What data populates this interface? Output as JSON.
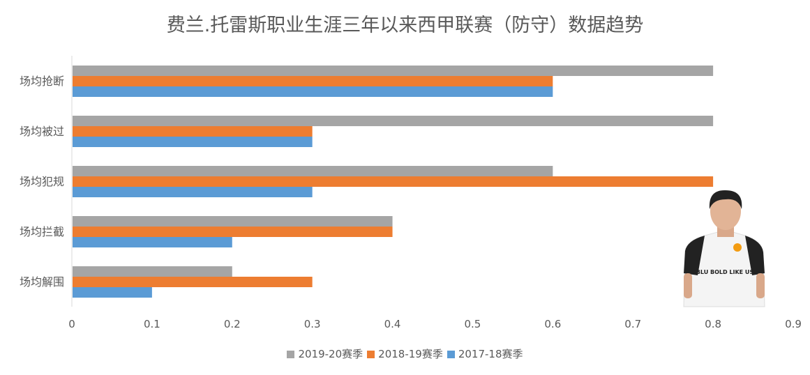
{
  "chart_data": {
    "type": "bar",
    "orientation": "horizontal",
    "title": "费兰.托雷斯职业生涯三年以来西甲联赛（防守）数据趋势",
    "categories": [
      "场均抢断",
      "场均被过",
      "场均犯规",
      "场均拦截",
      "场均解围"
    ],
    "series": [
      {
        "name": "2019-20赛季",
        "color": "#A5A5A5",
        "values": [
          0.8,
          0.8,
          0.6,
          0.4,
          0.2
        ]
      },
      {
        "name": "2018-19赛季",
        "color": "#ED7D31",
        "values": [
          0.6,
          0.3,
          0.8,
          0.4,
          0.3
        ]
      },
      {
        "name": "2017-18赛季",
        "color": "#5B9BD5",
        "values": [
          0.6,
          0.3,
          0.3,
          0.2,
          0.1
        ]
      }
    ],
    "xlim": [
      0,
      0.9
    ],
    "xticks": [
      "0",
      "0.1",
      "0.2",
      "0.3",
      "0.4",
      "0.5",
      "0.6",
      "0.7",
      "0.8",
      "0.9"
    ],
    "grid": false,
    "legend": "bottom"
  },
  "image": {
    "kit_text": "BLU BOLD LIKE US"
  }
}
